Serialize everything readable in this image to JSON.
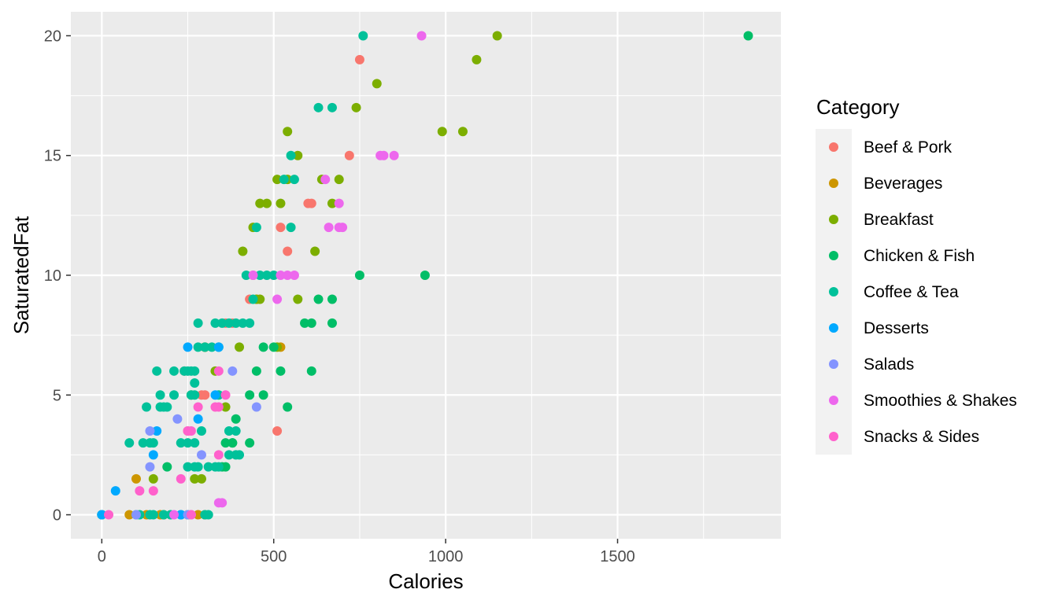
{
  "chart_data": {
    "type": "scatter",
    "xlabel": "Calories",
    "ylabel": "SaturatedFat",
    "xlim": [
      -90,
      1975
    ],
    "ylim": [
      -1,
      21
    ],
    "xticks": [
      0,
      500,
      1000,
      1500
    ],
    "yticks": [
      0,
      5,
      10,
      15,
      20
    ],
    "grid": true,
    "legend": {
      "title": "Category",
      "placement": "right",
      "entries": [
        {
          "name": "Beef & Pork",
          "color": "#F8766D"
        },
        {
          "name": "Beverages",
          "color": "#CD9600"
        },
        {
          "name": "Breakfast",
          "color": "#7CAE00"
        },
        {
          "name": "Chicken & Fish",
          "color": "#00BE67"
        },
        {
          "name": "Coffee & Tea",
          "color": "#00C19A"
        },
        {
          "name": "Desserts",
          "color": "#00A9FF"
        },
        {
          "name": "Salads",
          "color": "#8494FF"
        },
        {
          "name": "Smoothies & Shakes",
          "color": "#ED68ED"
        },
        {
          "name": "Snacks & Sides",
          "color": "#FF61CC"
        }
      ]
    },
    "series": [
      {
        "name": "Beef & Pork",
        "color": "#F8766D",
        "points": [
          [
            750,
            19
          ],
          [
            720,
            15
          ],
          [
            600,
            13
          ],
          [
            610,
            13
          ],
          [
            520,
            12
          ],
          [
            540,
            11
          ],
          [
            430,
            9
          ],
          [
            450,
            9
          ],
          [
            360,
            8
          ],
          [
            380,
            8
          ],
          [
            300,
            7
          ],
          [
            290,
            5
          ],
          [
            300,
            5
          ],
          [
            510,
            3.5
          ],
          [
            250,
            3.5
          ],
          [
            240,
            6
          ],
          [
            440,
            10
          ]
        ]
      },
      {
        "name": "Beverages",
        "color": "#CD9600",
        "points": [
          [
            0,
            0
          ],
          [
            80,
            0
          ],
          [
            100,
            1.5
          ],
          [
            130,
            0
          ],
          [
            180,
            0
          ],
          [
            250,
            0
          ],
          [
            280,
            0
          ],
          [
            300,
            0
          ],
          [
            520,
            7
          ],
          [
            300,
            7
          ],
          [
            170,
            0
          ]
        ]
      },
      {
        "name": "Breakfast",
        "color": "#7CAE00",
        "points": [
          [
            1150,
            20
          ],
          [
            1090,
            19
          ],
          [
            800,
            18
          ],
          [
            740,
            17
          ],
          [
            990,
            16
          ],
          [
            1050,
            16
          ],
          [
            540,
            16
          ],
          [
            570,
            15
          ],
          [
            510,
            14
          ],
          [
            540,
            14
          ],
          [
            640,
            14
          ],
          [
            690,
            14
          ],
          [
            460,
            13
          ],
          [
            480,
            13
          ],
          [
            520,
            13
          ],
          [
            670,
            13
          ],
          [
            440,
            12
          ],
          [
            410,
            11
          ],
          [
            620,
            11
          ],
          [
            450,
            9
          ],
          [
            460,
            9
          ],
          [
            570,
            9
          ],
          [
            400,
            7
          ],
          [
            510,
            7
          ],
          [
            300,
            7
          ],
          [
            270,
            1.5
          ],
          [
            290,
            1.5
          ],
          [
            150,
            1.5
          ],
          [
            330,
            6
          ],
          [
            260,
            5
          ],
          [
            360,
            4.5
          ]
        ]
      },
      {
        "name": "Chicken & Fish",
        "color": "#00BE67",
        "points": [
          [
            1880,
            20
          ],
          [
            940,
            10
          ],
          [
            750,
            10
          ],
          [
            630,
            9
          ],
          [
            670,
            9
          ],
          [
            590,
            8
          ],
          [
            610,
            8
          ],
          [
            670,
            8
          ],
          [
            470,
            7
          ],
          [
            500,
            7
          ],
          [
            450,
            6
          ],
          [
            520,
            6
          ],
          [
            610,
            6
          ],
          [
            430,
            5
          ],
          [
            470,
            5
          ],
          [
            540,
            4.5
          ],
          [
            390,
            4
          ],
          [
            360,
            3
          ],
          [
            380,
            3
          ],
          [
            430,
            3
          ],
          [
            350,
            2
          ],
          [
            360,
            2
          ],
          [
            190,
            2
          ],
          [
            380,
            3
          ]
        ]
      },
      {
        "name": "Coffee & Tea",
        "color": "#00C19A",
        "points": [
          [
            760,
            20
          ],
          [
            630,
            17
          ],
          [
            670,
            17
          ],
          [
            550,
            15
          ],
          [
            530,
            14
          ],
          [
            560,
            14
          ],
          [
            450,
            12
          ],
          [
            550,
            12
          ],
          [
            420,
            10
          ],
          [
            460,
            10
          ],
          [
            480,
            10
          ],
          [
            500,
            10
          ],
          [
            440,
            9
          ],
          [
            280,
            8
          ],
          [
            330,
            8
          ],
          [
            350,
            8
          ],
          [
            370,
            8
          ],
          [
            390,
            8
          ],
          [
            410,
            8
          ],
          [
            430,
            8
          ],
          [
            280,
            7
          ],
          [
            300,
            7
          ],
          [
            320,
            7
          ],
          [
            340,
            7
          ],
          [
            160,
            6
          ],
          [
            210,
            6
          ],
          [
            240,
            6
          ],
          [
            250,
            6
          ],
          [
            260,
            6
          ],
          [
            270,
            6
          ],
          [
            170,
            5
          ],
          [
            210,
            5
          ],
          [
            260,
            5
          ],
          [
            270,
            5
          ],
          [
            340,
            5
          ],
          [
            130,
            4.5
          ],
          [
            170,
            4.5
          ],
          [
            180,
            4.5
          ],
          [
            190,
            4.5
          ],
          [
            120,
            3
          ],
          [
            140,
            3
          ],
          [
            150,
            3
          ],
          [
            230,
            3
          ],
          [
            250,
            3
          ],
          [
            80,
            3
          ],
          [
            290,
            3.5
          ],
          [
            370,
            3.5
          ],
          [
            390,
            3.5
          ],
          [
            250,
            2
          ],
          [
            270,
            2
          ],
          [
            280,
            2
          ],
          [
            310,
            2
          ],
          [
            330,
            2
          ],
          [
            340,
            2
          ],
          [
            370,
            2.5
          ],
          [
            390,
            2.5
          ],
          [
            400,
            2.5
          ],
          [
            0,
            0
          ],
          [
            100,
            0
          ],
          [
            110,
            0
          ],
          [
            140,
            0
          ],
          [
            150,
            0
          ],
          [
            180,
            0
          ],
          [
            200,
            0
          ],
          [
            230,
            0
          ],
          [
            300,
            0
          ],
          [
            310,
            0
          ],
          [
            270,
            3
          ],
          [
            270,
            5.5
          ]
        ]
      },
      {
        "name": "Desserts",
        "color": "#00A9FF",
        "points": [
          [
            250,
            7
          ],
          [
            340,
            7
          ],
          [
            330,
            5
          ],
          [
            280,
            4
          ],
          [
            150,
            2.5
          ],
          [
            160,
            3.5
          ],
          [
            40,
            1
          ],
          [
            0,
            0
          ],
          [
            230,
            0
          ]
        ]
      },
      {
        "name": "Salads",
        "color": "#8494FF",
        "points": [
          [
            450,
            4.5
          ],
          [
            220,
            4
          ],
          [
            140,
            3.5
          ],
          [
            140,
            2
          ],
          [
            290,
            2.5
          ],
          [
            380,
            6
          ],
          [
            100,
            0
          ],
          [
            250,
            0
          ]
        ]
      },
      {
        "name": "Smoothies & Shakes",
        "color": "#ED68ED",
        "points": [
          [
            930,
            20
          ],
          [
            810,
            15
          ],
          [
            820,
            15
          ],
          [
            850,
            15
          ],
          [
            650,
            14
          ],
          [
            690,
            13
          ],
          [
            660,
            12
          ],
          [
            690,
            12
          ],
          [
            700,
            12
          ],
          [
            440,
            10
          ],
          [
            520,
            10
          ],
          [
            540,
            10
          ],
          [
            560,
            10
          ],
          [
            510,
            9
          ],
          [
            340,
            0.5
          ],
          [
            350,
            0.5
          ],
          [
            210,
            0
          ],
          [
            260,
            0
          ]
        ]
      },
      {
        "name": "Snacks & Sides",
        "color": "#FF61CC",
        "points": [
          [
            280,
            4.5
          ],
          [
            330,
            4.5
          ],
          [
            340,
            4.5
          ],
          [
            360,
            5
          ],
          [
            250,
            3.5
          ],
          [
            260,
            3.5
          ],
          [
            340,
            2.5
          ],
          [
            230,
            1.5
          ],
          [
            110,
            1
          ],
          [
            150,
            1
          ],
          [
            20,
            0
          ],
          [
            260,
            0
          ],
          [
            340,
            6
          ]
        ]
      }
    ]
  }
}
